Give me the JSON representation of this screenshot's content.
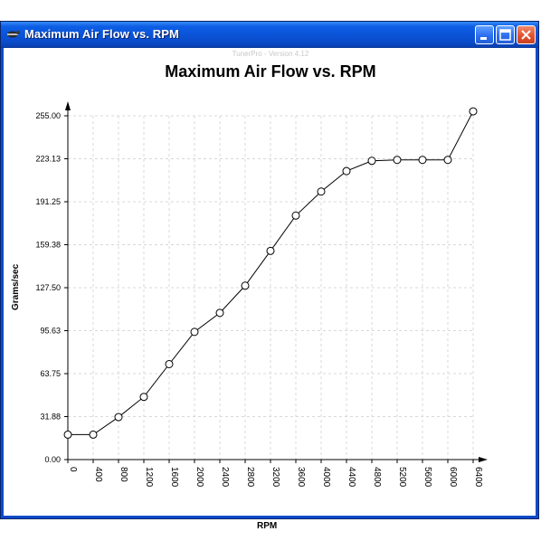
{
  "window": {
    "title": "Maximum Air Flow vs. RPM",
    "version_text": "TunerPro - Version 4.12",
    "buttons": [
      "minimize-icon",
      "maximize-icon",
      "close-icon"
    ],
    "colors": {
      "titlebar": "#0a53d8",
      "close": "#e2532f"
    }
  },
  "chart_data": {
    "type": "line",
    "title": "Maximum Air Flow vs. RPM",
    "xlabel": "RPM",
    "ylabel": "Grams/sec",
    "x": [
      0,
      400,
      800,
      1200,
      1600,
      2000,
      2400,
      2800,
      3200,
      3600,
      4000,
      4400,
      4800,
      5200,
      5600,
      6000,
      6400
    ],
    "x_ticks": [
      "0",
      "400",
      "800",
      "1200",
      "1600",
      "2000",
      "2400",
      "2800",
      "3200",
      "3600",
      "4000",
      "4400",
      "4800",
      "5200",
      "5600",
      "6000",
      "6400"
    ],
    "y_ticks": [
      "0.00",
      "31.88",
      "63.75",
      "95.63",
      "127.50",
      "159.38",
      "191.25",
      "223.13",
      "255.00"
    ],
    "ylim": [
      0,
      255
    ],
    "series": [
      {
        "values": [
          18.5,
          18.5,
          31.5,
          46.5,
          70.8,
          94.7,
          108.8,
          129.0,
          154.8,
          181.0,
          198.8,
          214.0,
          221.6,
          222.3,
          222.3,
          222.3,
          258.3
        ]
      }
    ],
    "grid": true,
    "marker": "circle"
  }
}
